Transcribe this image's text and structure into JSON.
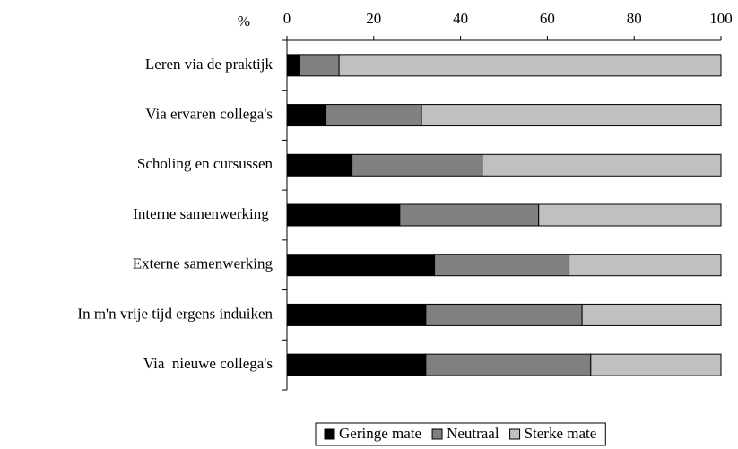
{
  "chart_data": {
    "type": "stacked_bar_horizontal",
    "axis_label": "%",
    "categories": [
      "Leren via de praktijk",
      "Via ervaren collega's",
      "Scholing en cursussen",
      "Interne samenwerking ",
      "Externe samenwerking",
      "In m'n vrije tijd ergens induiken",
      "Via  nieuwe collega's"
    ],
    "series": [
      {
        "name": "Geringe mate",
        "color": "#000000",
        "values": [
          3,
          9,
          15,
          26,
          34,
          32,
          32
        ]
      },
      {
        "name": "Neutraal",
        "color": "#808080",
        "values": [
          9,
          22,
          30,
          32,
          31,
          36,
          38
        ]
      },
      {
        "name": "Sterke mate",
        "color": "#c0c0c0",
        "values": [
          88,
          69,
          55,
          42,
          35,
          32,
          30
        ]
      }
    ],
    "xlim": [
      0,
      100
    ],
    "xticks": [
      0,
      20,
      40,
      60,
      80,
      100
    ],
    "legend": "bottom"
  }
}
